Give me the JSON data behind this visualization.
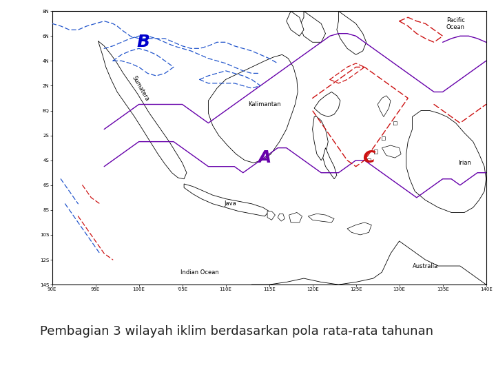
{
  "title_caption": "Pembagian 3 wilayah iklim berdasarkan pola rata-rata tahunan",
  "caption_fontsize": 13,
  "caption_color": "#222222",
  "fig_width": 7.2,
  "fig_height": 5.4,
  "dpi": 100,
  "background_color": "#ffffff",
  "map_bg": "#ffffff",
  "border_color": "#000000",
  "purple_color": "#6600aa",
  "blue_dashed_color": "#2255cc",
  "red_dashed_color": "#cc1111",
  "label_A": {
    "text": "A",
    "lon": 114.5,
    "lat": -3.8,
    "color": "#6600aa",
    "fontsize": 18,
    "fontweight": "bold",
    "style": "italic"
  },
  "label_B": {
    "text": "B",
    "lon": 100.5,
    "lat": 5.5,
    "color": "#0000cc",
    "fontsize": 18,
    "fontweight": "bold",
    "style": "italic"
  },
  "label_C": {
    "text": "C",
    "lon": 126.5,
    "lat": -3.8,
    "color": "#cc1111",
    "fontsize": 18,
    "fontweight": "bold",
    "style": "italic"
  },
  "geo_labels": [
    {
      "text": "Sumatera",
      "lon": 100.2,
      "lat": 1.8,
      "rotation": -60,
      "fontsize": 6
    },
    {
      "text": "Kalimantan",
      "lon": 114.5,
      "lat": 0.5,
      "rotation": 0,
      "fontsize": 6
    },
    {
      "text": "Java",
      "lon": 110.5,
      "lat": -7.5,
      "rotation": 0,
      "fontsize": 6
    },
    {
      "text": "Irian",
      "lon": 137.5,
      "lat": -4.2,
      "rotation": 0,
      "fontsize": 6
    },
    {
      "text": "Pacific\nOcean",
      "lon": 136.5,
      "lat": 7.0,
      "rotation": 0,
      "fontsize": 6
    },
    {
      "text": "Indian Ocean",
      "lon": 107.0,
      "lat": -13.0,
      "rotation": 0,
      "fontsize": 6
    },
    {
      "text": "Australia",
      "lon": 133.0,
      "lat": -12.5,
      "rotation": 0,
      "fontsize": 6
    }
  ],
  "ytick_vals": [
    8,
    6,
    4,
    2,
    0,
    -2,
    -4,
    -6,
    -8,
    -10,
    -12,
    -14
  ],
  "ytick_labels": [
    "8N",
    "6N",
    "4N",
    "2N",
    "EQ",
    "2S",
    "4S",
    "6S",
    "8S",
    "10S",
    "12S",
    "14S"
  ],
  "xtick_vals": [
    90,
    95,
    100,
    105,
    110,
    115,
    120,
    125,
    130,
    135,
    140
  ],
  "xtick_labels": [
    "90E",
    "95E",
    "100E",
    "'05E",
    "110E",
    "115E",
    "120E",
    "125E",
    "130E",
    "135E",
    "140E"
  ]
}
